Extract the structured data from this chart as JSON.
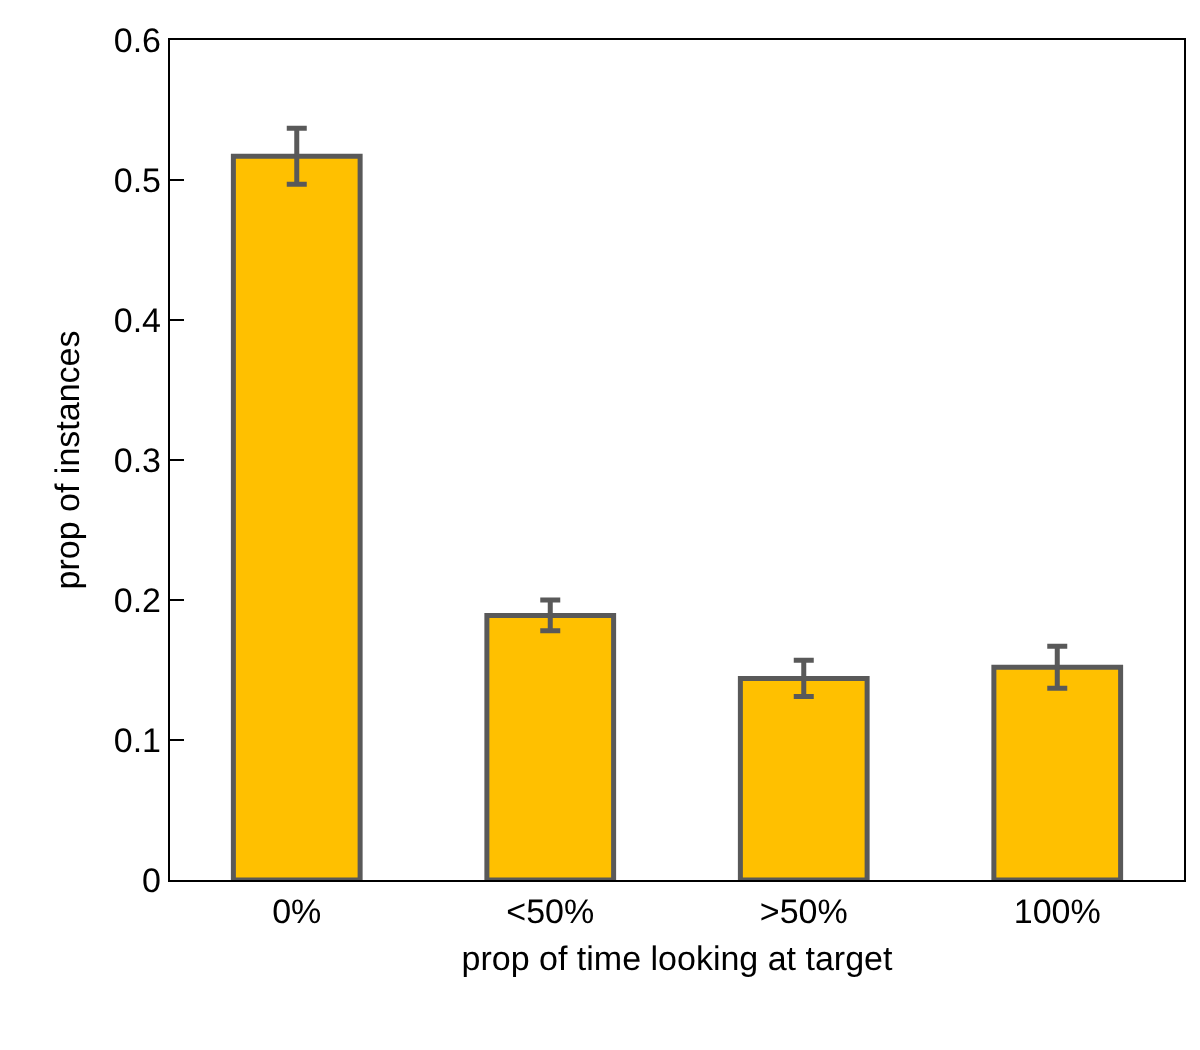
{
  "chart_data": {
    "type": "bar",
    "xlabel": "prop of time looking at target",
    "ylabel": "prop of instances",
    "categories": [
      "0%",
      "<50%",
      ">50%",
      "100%"
    ],
    "values": [
      0.517,
      0.189,
      0.144,
      0.152
    ],
    "errors": [
      0.02,
      0.011,
      0.013,
      0.015
    ],
    "color": "#ffc000",
    "ylim": [
      0,
      0.6
    ],
    "yticks": [
      {
        "value": 0,
        "label": "0"
      },
      0.1,
      0.2,
      0.3,
      0.4,
      0.5,
      0.6
    ]
  }
}
